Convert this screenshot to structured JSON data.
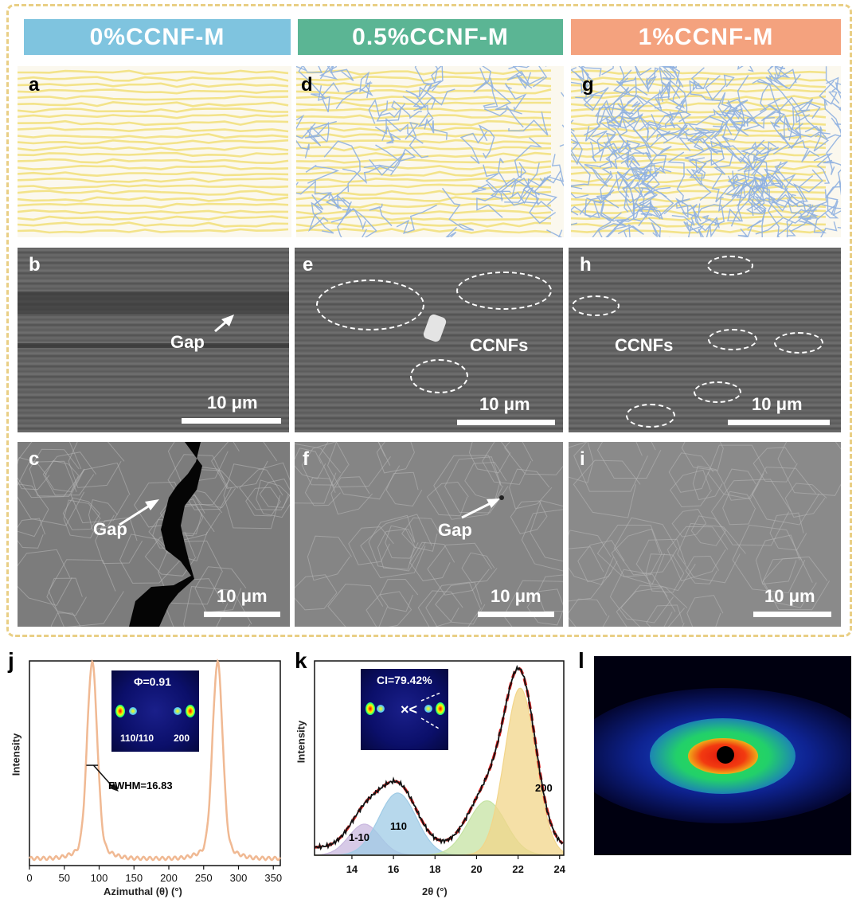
{
  "columns": [
    {
      "title": "0%CCNF-M",
      "color": "#7fc4df"
    },
    {
      "title": "0.5%CCNF-M",
      "color": "#5bb594"
    },
    {
      "title": "1%CCNF-M",
      "color": "#f4a27e"
    }
  ],
  "panel_labels": {
    "a": "a",
    "b": "b",
    "c": "c",
    "d": "d",
    "e": "e",
    "f": "f",
    "g": "g",
    "h": "h",
    "i": "i",
    "j": "j",
    "k": "k",
    "l": "l"
  },
  "sem_annotations": {
    "b_gap": "Gap",
    "c_gap": "Gap",
    "f_gap": "Gap",
    "e_ccnfs": "CCNFs",
    "h_ccnfs": "CCNFs",
    "scale": "10 μm"
  },
  "colors": {
    "fiber_yellow": "#f3e38a",
    "ccnf_blue": "#8fb0e0",
    "curve_orange": "#f0b993",
    "fit_red": "#d42020",
    "frame_gold": "#e9cf85"
  },
  "chart_data": [
    {
      "type": "line",
      "panel": "j",
      "xlabel": "Azimuthal (θ) (°)",
      "ylabel": "Intensity",
      "xlim": [
        0,
        360
      ],
      "xticks": [
        0,
        50,
        100,
        150,
        200,
        250,
        300,
        350
      ],
      "peaks": [
        {
          "center": 90,
          "fwhm": 16.83
        },
        {
          "center": 270,
          "fwhm": 16.83
        }
      ],
      "annotations": {
        "fwhm": "FWHM=16.83",
        "phi": "Φ=0.91",
        "inset_110": "110/110",
        "inset_200": "200"
      }
    },
    {
      "type": "area",
      "panel": "k",
      "xlabel": "2θ (°)",
      "ylabel": "Intensity",
      "xlim": [
        12.2,
        24.2
      ],
      "xticks": [
        14,
        16,
        18,
        20,
        22,
        24
      ],
      "series": [
        {
          "name": "1-10",
          "center": 14.6,
          "height": 0.16,
          "width": 0.75,
          "color": "#c9b8df"
        },
        {
          "name": "110",
          "center": 16.2,
          "height": 0.32,
          "width": 0.9,
          "color": "#9fcbe6"
        },
        {
          "name": "",
          "center": 20.5,
          "height": 0.28,
          "width": 0.9,
          "color": "#c5e3a3"
        },
        {
          "name": "200",
          "center": 22.1,
          "height": 0.86,
          "width": 0.75,
          "color": "#f2d589"
        }
      ],
      "annotations": {
        "ci": "CI=79.42%"
      }
    },
    {
      "type": "heatmap",
      "panel": "l",
      "description_colors": [
        "#000010",
        "#0a1a9a",
        "#1e63e0",
        "#1ed66a",
        "#f2e51a",
        "#f02a12",
        "#000000"
      ]
    }
  ]
}
